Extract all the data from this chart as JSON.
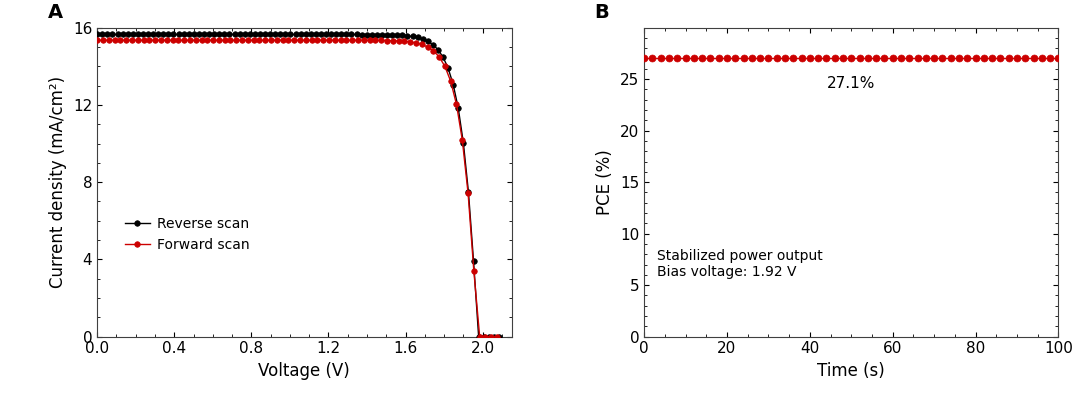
{
  "panel_A_label": "A",
  "panel_B_label": "B",
  "xlabel_A": "Voltage (V)",
  "ylabel_A": "Current density (mA/cm²)",
  "xlabel_B": "Time (s)",
  "ylabel_B": "PCE (%)",
  "xlim_A": [
    0.0,
    2.15
  ],
  "ylim_A": [
    0,
    16
  ],
  "xlim_B": [
    0,
    100
  ],
  "ylim_B": [
    0,
    30
  ],
  "yticks_A": [
    0,
    4,
    8,
    12,
    16
  ],
  "xticks_A": [
    0.0,
    0.4,
    0.8,
    1.2,
    1.6,
    2.0
  ],
  "yticks_B": [
    0,
    5,
    10,
    15,
    20,
    25
  ],
  "xticks_B": [
    0,
    20,
    40,
    60,
    80,
    100
  ],
  "reverse_color": "#000000",
  "forward_color": "#cc0000",
  "legend_reverse": "Reverse scan",
  "legend_forward": "Forward scan",
  "pce_label": "27.1%",
  "annotation_line1": "Stabilized power output",
  "annotation_line2": "Bias voltage: 1.92 V",
  "pce_constant": 27.1,
  "background_color": "#ffffff",
  "marker_size_A": 4,
  "marker_size_B": 5,
  "line_width": 1.0,
  "jsc_rev": 15.65,
  "jsc_fwd": 15.35,
  "voc_rev": 2.085,
  "voc_fwd": 2.075,
  "n_pts_rev": 80,
  "n_pts_fwd": 70
}
